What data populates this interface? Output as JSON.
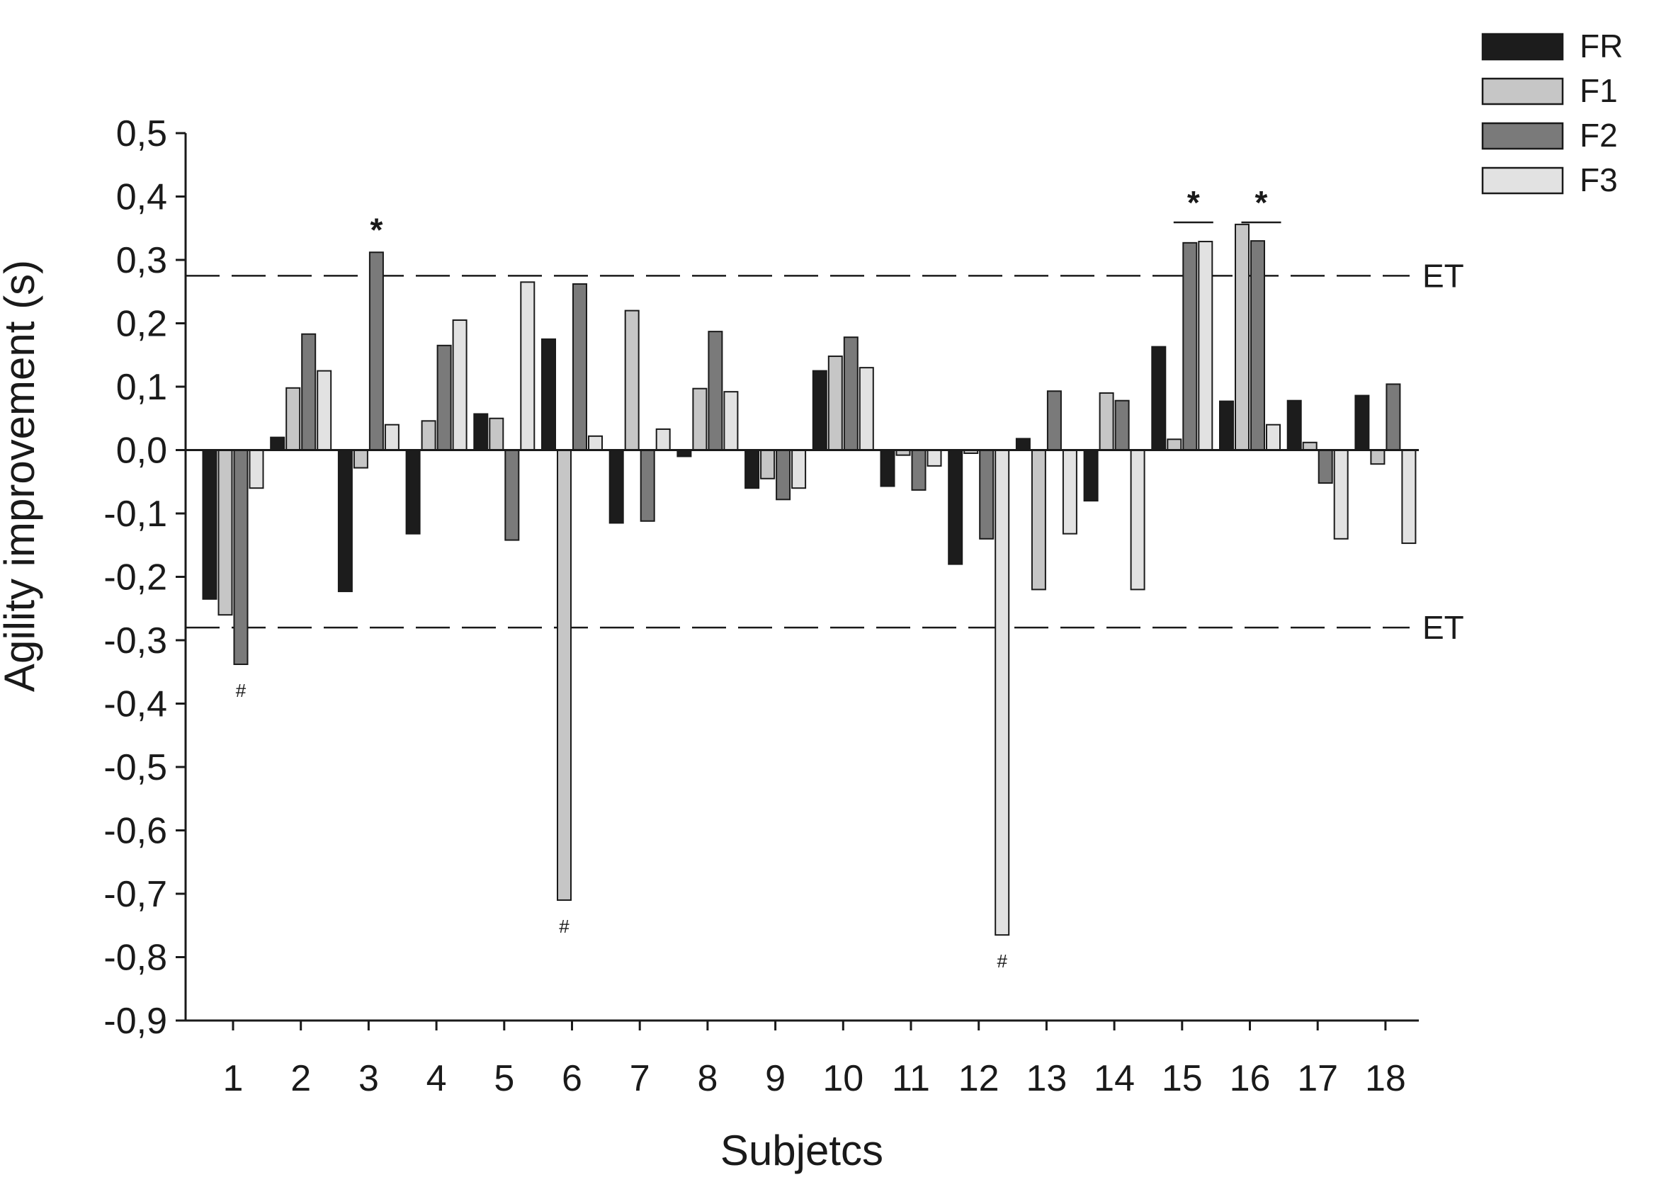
{
  "chart_data": {
    "type": "bar",
    "xlabel": "Subjetcs",
    "ylabel": "Agility improvement (s)",
    "ylim": [
      -0.9,
      0.5
    ],
    "yticks": [
      0.5,
      0.4,
      0.3,
      0.2,
      0.1,
      0.0,
      -0.1,
      -0.2,
      -0.3,
      -0.4,
      -0.5,
      -0.6,
      -0.7,
      -0.8,
      -0.9
    ],
    "ytick_labels": [
      "0,5",
      "0,4",
      "0,3",
      "0,2",
      "0,1",
      "0,0",
      "-0,1",
      "-0,2",
      "-0,3",
      "-0,4",
      "-0,5",
      "-0,6",
      "-0,7",
      "-0,8",
      "-0,9"
    ],
    "categories": [
      "1",
      "2",
      "3",
      "4",
      "5",
      "6",
      "7",
      "8",
      "9",
      "10",
      "11",
      "12",
      "13",
      "14",
      "15",
      "16",
      "17",
      "18"
    ],
    "series": [
      {
        "name": "FR",
        "color": "#1c1c1c",
        "values": [
          -0.235,
          0.02,
          -0.223,
          -0.132,
          0.057,
          0.175,
          -0.115,
          -0.01,
          -0.06,
          0.125,
          -0.057,
          -0.18,
          0.018,
          -0.08,
          0.163,
          0.077,
          0.078,
          0.086
        ]
      },
      {
        "name": "F1",
        "color": "#c6c6c6",
        "values": [
          -0.26,
          0.098,
          -0.028,
          0.046,
          0.05,
          -0.71,
          0.22,
          0.097,
          -0.045,
          0.148,
          -0.008,
          -0.005,
          -0.22,
          0.09,
          0.017,
          0.356,
          0.012,
          -0.022
        ]
      },
      {
        "name": "F2",
        "color": "#7a7a7a",
        "values": [
          -0.338,
          0.183,
          0.312,
          0.165,
          -0.142,
          0.262,
          -0.112,
          0.187,
          -0.078,
          0.178,
          -0.063,
          -0.14,
          0.093,
          0.078,
          0.327,
          0.33,
          -0.052,
          0.104
        ]
      },
      {
        "name": "F3",
        "color": "#e2e2e2",
        "values": [
          -0.06,
          0.125,
          0.04,
          0.205,
          0.265,
          0.022,
          0.033,
          0.092,
          -0.06,
          0.13,
          -0.025,
          -0.765,
          -0.132,
          -0.22,
          0.329,
          0.04,
          -0.14,
          -0.147
        ]
      }
    ],
    "reference_lines": [
      {
        "label": "ET",
        "value": 0.275
      },
      {
        "label": "ET",
        "value": -0.28
      }
    ],
    "annotations": [
      {
        "text": "*",
        "category": "3"
      },
      {
        "text": "*",
        "category": "15"
      },
      {
        "text": "*",
        "category": "16"
      },
      {
        "text": "#",
        "category": "1"
      },
      {
        "text": "#",
        "category": "6"
      },
      {
        "text": "#",
        "category": "12"
      }
    ],
    "legend_position": "top-right",
    "grid": false
  }
}
